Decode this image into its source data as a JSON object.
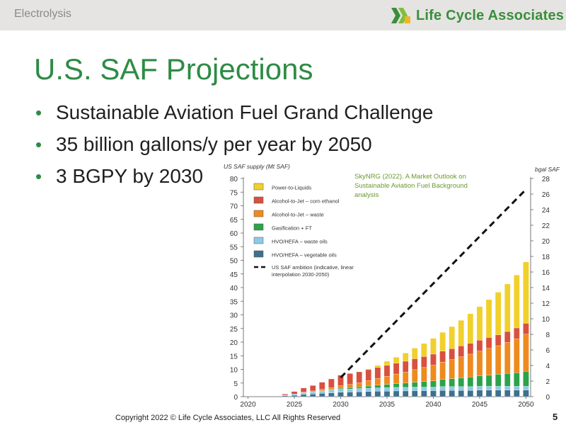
{
  "header": {
    "section": "Electrolysis",
    "logo_text": "Life Cycle Associates"
  },
  "slide": {
    "title": "U.S. SAF Projections",
    "bullets": [
      "Sustainable Aviation Fuel Grand Challenge",
      "35 billion gallons/y per year by 2050",
      "3 BGPY by 2030"
    ]
  },
  "footer": {
    "copyright": "Copyright 2022 © Life Cycle Associates, LLC All Rights Reserved",
    "page_number": "5"
  },
  "chart_data": {
    "type": "bar",
    "stacked": true,
    "title": "US SAF supply (Mt SAF)",
    "right_axis_label": "bgal SAF",
    "source_note": [
      "SkyNRG (2022). A Market Outlook on",
      "Sustainable Aviation Fuel Background",
      "analysis"
    ],
    "ylim": [
      0,
      80
    ],
    "yticks": [
      0,
      5,
      10,
      15,
      20,
      25,
      30,
      35,
      40,
      45,
      50,
      55,
      60,
      65,
      70,
      75,
      80
    ],
    "y2lim": [
      0,
      28
    ],
    "y2ticks": [
      0,
      2,
      4,
      6,
      8,
      10,
      12,
      14,
      16,
      18,
      20,
      22,
      24,
      26,
      28
    ],
    "xlim": [
      2019.5,
      2050.5
    ],
    "xticks": [
      2020,
      2025,
      2030,
      2035,
      2040,
      2045,
      2050
    ],
    "categories": [
      2024,
      2025,
      2026,
      2027,
      2028,
      2029,
      2030,
      2031,
      2032,
      2033,
      2034,
      2035,
      2036,
      2037,
      2038,
      2039,
      2040,
      2041,
      2042,
      2043,
      2044,
      2045,
      2046,
      2047,
      2048,
      2049,
      2050
    ],
    "series": [
      {
        "name": "HVO/HEFA – vegetable oils",
        "color": "#3f6f8c",
        "values": [
          0.3,
          0.5,
          0.8,
          1.0,
          1.2,
          1.4,
          1.6,
          1.7,
          1.8,
          1.9,
          2.0,
          2.0,
          2.1,
          2.1,
          2.2,
          2.2,
          2.2,
          2.3,
          2.3,
          2.3,
          2.3,
          2.4,
          2.4,
          2.4,
          2.4,
          2.4,
          2.4
        ]
      },
      {
        "name": "HVO/HEFA – waste oils",
        "color": "#8ecae6",
        "values": [
          0.3,
          0.5,
          0.7,
          0.8,
          0.9,
          1.0,
          1.1,
          1.1,
          1.2,
          1.2,
          1.2,
          1.3,
          1.3,
          1.3,
          1.3,
          1.3,
          1.3,
          1.4,
          1.4,
          1.4,
          1.4,
          1.4,
          1.4,
          1.4,
          1.4,
          1.4,
          1.4
        ]
      },
      {
        "name": "Gasification + FT",
        "color": "#2ca24a",
        "values": [
          0.0,
          0.0,
          0.0,
          0.0,
          0.1,
          0.2,
          0.4,
          0.5,
          0.6,
          0.8,
          1.0,
          1.2,
          1.4,
          1.6,
          1.8,
          2.0,
          2.3,
          2.6,
          2.9,
          3.2,
          3.5,
          3.8,
          4.1,
          4.4,
          4.7,
          5.0,
          5.5
        ]
      },
      {
        "name": "Alcohol-to-Jet – waste",
        "color": "#ee8a1e",
        "values": [
          0.0,
          0.0,
          0.2,
          0.3,
          0.5,
          0.7,
          0.9,
          1.2,
          1.5,
          2.0,
          2.5,
          3.0,
          3.5,
          4.0,
          4.6,
          5.2,
          5.8,
          6.4,
          7.0,
          7.7,
          8.4,
          9.1,
          9.8,
          10.5,
          11.4,
          12.4,
          13.6
        ]
      },
      {
        "name": "Alcohol-to-Jet – corn ethanol",
        "color": "#d9503f",
        "values": [
          0.4,
          0.9,
          1.5,
          2.0,
          2.6,
          3.2,
          3.9,
          4.0,
          4.0,
          4.0,
          4.0,
          4.0,
          4.0,
          4.0,
          4.0,
          4.0,
          4.0,
          4.0,
          4.0,
          4.0,
          4.0,
          4.0,
          4.0,
          4.0,
          4.0,
          4.0,
          4.0
        ]
      },
      {
        "name": "Power-to-Liquids",
        "color": "#f2d02b",
        "values": [
          0.0,
          0.0,
          0.0,
          0.0,
          0.0,
          0.0,
          0.0,
          0.0,
          0.0,
          0.3,
          0.8,
          1.5,
          2.2,
          3.0,
          3.9,
          4.8,
          5.8,
          6.9,
          8.1,
          9.4,
          10.8,
          12.3,
          13.9,
          15.6,
          17.4,
          19.4,
          22.5
        ]
      }
    ],
    "ambition_line": {
      "name": "US SAF ambition (indicative, linear interpolation 2030-2050)",
      "x": [
        2030,
        2050
      ],
      "y": [
        7.0,
        76.0
      ]
    },
    "legend_order": [
      "Power-to-Liquids",
      "Alcohol-to-Jet – corn ethanol",
      "Alcohol-to-Jet – waste",
      "Gasification + FT",
      "HVO/HEFA – waste oils",
      "HVO/HEFA – vegetable oils"
    ],
    "legend_line_label": [
      "US SAF ambition (indicative, linear",
      "interpolation 2030-2050)"
    ]
  }
}
